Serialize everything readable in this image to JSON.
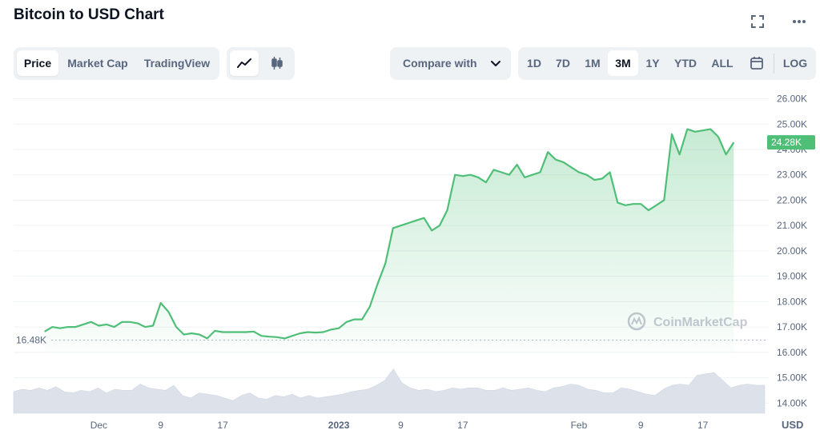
{
  "header": {
    "title": "Bitcoin to USD Chart",
    "icons": [
      "fullscreen-icon",
      "more-options-icon"
    ]
  },
  "tabs": [
    {
      "label": "Price",
      "active": true
    },
    {
      "label": "Market Cap",
      "active": false
    },
    {
      "label": "TradingView",
      "active": false
    }
  ],
  "chart_types": [
    {
      "icon": "line-chart-icon",
      "active": true
    },
    {
      "icon": "candlestick-icon",
      "active": false
    }
  ],
  "compare": {
    "label": "Compare with"
  },
  "ranges": [
    {
      "label": "1D",
      "active": false
    },
    {
      "label": "7D",
      "active": false
    },
    {
      "label": "1M",
      "active": false
    },
    {
      "label": "3M",
      "active": true
    },
    {
      "label": "1Y",
      "active": false
    },
    {
      "label": "YTD",
      "active": false
    },
    {
      "label": "ALL",
      "active": false
    }
  ],
  "calendar_icon": "calendar-icon",
  "log_label": "LOG",
  "watermark": "CoinMarketCap",
  "colors": {
    "line": "#4fbf77",
    "accent_bg": "#eff2f5",
    "text_muted": "#58667e"
  },
  "chart_data": {
    "type": "area",
    "currency_label": "USD",
    "y_ticks": [
      "26.00K",
      "25.00K",
      "24.00K",
      "23.00K",
      "22.00K",
      "21.00K",
      "20.00K",
      "19.00K",
      "18.00K",
      "17.00K",
      "16.00K",
      "15.00K",
      "14.00K"
    ],
    "ylim": [
      13.6,
      26.3
    ],
    "x_ticks": [
      {
        "label": "Dec",
        "t": 7,
        "bold": false
      },
      {
        "label": "9",
        "t": 15,
        "bold": false
      },
      {
        "label": "17",
        "t": 23,
        "bold": false
      },
      {
        "label": "2023",
        "t": 38,
        "bold": true
      },
      {
        "label": "9",
        "t": 46,
        "bold": false
      },
      {
        "label": "17",
        "t": 54,
        "bold": false
      },
      {
        "label": "Feb",
        "t": 69,
        "bold": false
      },
      {
        "label": "9",
        "t": 77,
        "bold": false
      },
      {
        "label": "17",
        "t": 85,
        "bold": false
      }
    ],
    "xlim": [
      -4,
      93
    ],
    "current_price": {
      "label": "24.28K",
      "value": 24.28
    },
    "min_marker": {
      "label": "16.48K",
      "value": 16.48
    },
    "price": [
      [
        0,
        16.82
      ],
      [
        1,
        17.0
      ],
      [
        2,
        16.95
      ],
      [
        3,
        17.0
      ],
      [
        4,
        17.0
      ],
      [
        5,
        17.1
      ],
      [
        6,
        17.2
      ],
      [
        7,
        17.05
      ],
      [
        8,
        17.1
      ],
      [
        9,
        17.0
      ],
      [
        10,
        17.2
      ],
      [
        11,
        17.2
      ],
      [
        12,
        17.15
      ],
      [
        13,
        17.0
      ],
      [
        14,
        17.05
      ],
      [
        15,
        17.95
      ],
      [
        16,
        17.6
      ],
      [
        17,
        17.0
      ],
      [
        18,
        16.7
      ],
      [
        19,
        16.75
      ],
      [
        20,
        16.7
      ],
      [
        21,
        16.55
      ],
      [
        22,
        16.85
      ],
      [
        23,
        16.8
      ],
      [
        24,
        16.8
      ],
      [
        25,
        16.8
      ],
      [
        26,
        16.8
      ],
      [
        27,
        16.82
      ],
      [
        28,
        16.65
      ],
      [
        29,
        16.62
      ],
      [
        30,
        16.6
      ],
      [
        31,
        16.55
      ],
      [
        32,
        16.65
      ],
      [
        33,
        16.75
      ],
      [
        34,
        16.8
      ],
      [
        35,
        16.78
      ],
      [
        36,
        16.8
      ],
      [
        37,
        16.9
      ],
      [
        38,
        16.95
      ],
      [
        39,
        17.2
      ],
      [
        40,
        17.3
      ],
      [
        41,
        17.3
      ],
      [
        42,
        17.8
      ],
      [
        43,
        18.7
      ],
      [
        44,
        19.5
      ],
      [
        45,
        20.9
      ],
      [
        46,
        21.0
      ],
      [
        47,
        21.1
      ],
      [
        48,
        21.2
      ],
      [
        49,
        21.3
      ],
      [
        50,
        20.8
      ],
      [
        51,
        21.0
      ],
      [
        52,
        21.6
      ],
      [
        53,
        23.0
      ],
      [
        54,
        22.95
      ],
      [
        55,
        23.0
      ],
      [
        56,
        22.9
      ],
      [
        57,
        22.7
      ],
      [
        58,
        23.2
      ],
      [
        59,
        23.1
      ],
      [
        60,
        23.0
      ],
      [
        61,
        23.4
      ],
      [
        62,
        22.9
      ],
      [
        63,
        23.0
      ],
      [
        64,
        23.1
      ],
      [
        65,
        23.9
      ],
      [
        66,
        23.6
      ],
      [
        67,
        23.5
      ],
      [
        68,
        23.3
      ],
      [
        69,
        23.1
      ],
      [
        70,
        23.0
      ],
      [
        71,
        22.8
      ],
      [
        72,
        22.85
      ],
      [
        73,
        23.1
      ],
      [
        74,
        21.9
      ],
      [
        75,
        21.8
      ],
      [
        76,
        21.85
      ],
      [
        77,
        21.85
      ],
      [
        78,
        21.6
      ],
      [
        79,
        21.8
      ],
      [
        80,
        22.0
      ],
      [
        81,
        24.6
      ],
      [
        82,
        23.8
      ],
      [
        83,
        24.8
      ],
      [
        84,
        24.7
      ],
      [
        85,
        24.75
      ],
      [
        86,
        24.8
      ],
      [
        87,
        24.5
      ],
      [
        88,
        23.8
      ],
      [
        89,
        24.28
      ]
    ],
    "volume": [
      14.45,
      14.55,
      14.5,
      14.6,
      14.5,
      14.65,
      14.45,
      14.4,
      14.5,
      14.45,
      14.6,
      14.4,
      14.55,
      14.5,
      14.5,
      14.75,
      14.6,
      14.55,
      14.5,
      14.7,
      14.3,
      14.2,
      14.4,
      14.35,
      14.3,
      14.2,
      14.1,
      14.3,
      14.4,
      14.2,
      14.15,
      14.3,
      14.25,
      14.35,
      14.2,
      14.3,
      14.2,
      14.25,
      14.3,
      14.35,
      14.45,
      14.5,
      14.55,
      14.7,
      14.9,
      15.35,
      14.8,
      14.6,
      14.5,
      14.55,
      14.45,
      14.5,
      14.6,
      14.55,
      14.6,
      14.6,
      14.5,
      14.5,
      14.6,
      14.5,
      14.55,
      14.6,
      14.5,
      14.45,
      14.6,
      14.65,
      14.75,
      14.7,
      14.55,
      14.5,
      14.4,
      14.4,
      14.6,
      14.55,
      14.45,
      14.35,
      14.3,
      14.55,
      14.7,
      14.75,
      14.7,
      15.1,
      15.15,
      15.2,
      14.9,
      14.6,
      14.7,
      14.75,
      14.7,
      14.7
    ]
  }
}
